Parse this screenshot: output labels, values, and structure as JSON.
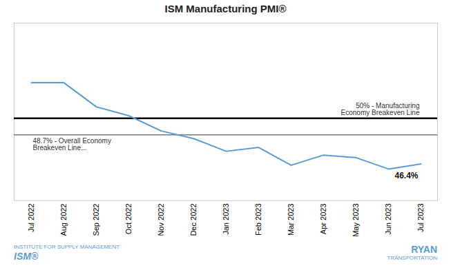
{
  "chart_data": {
    "type": "line",
    "title": "ISM Manufacturing PMI®",
    "categories": [
      "Jul 2022",
      "Aug 2022",
      "Sep 2022",
      "Oct 2022",
      "Nov 2022",
      "Dec 2022",
      "Jan 2023",
      "Feb 2023",
      "Mar 2023",
      "Apr 2023",
      "May 2023",
      "Jun 2023",
      "Jul 2023"
    ],
    "values": [
      52.8,
      52.8,
      50.9,
      50.2,
      49.0,
      48.4,
      47.4,
      47.7,
      46.3,
      47.1,
      46.9,
      46.0,
      46.4
    ],
    "color": "#5b9bd5",
    "ylim": [
      43.5,
      57.5
    ],
    "tick_labels": "x",
    "grid": false,
    "reference_lines": [
      {
        "y": 50.0,
        "label": "50% - Manufacturing\nEconomy Breakeven Line",
        "color": "#000000",
        "line_style": "solid"
      },
      {
        "y": 48.7,
        "label": "48.7% - Overall Economy\nBreakeven Line...",
        "color": "#777777",
        "line_style": "dashed"
      }
    ],
    "annotations": [
      {
        "text": "46.4%",
        "x": "Jul 2023",
        "y": 46.4
      },
      {
        "text": "INSTITUTE FOR SUPPLY MANAGEMENT",
        "color": "#5b9bd5"
      },
      {
        "text": "ISM®",
        "color": "#5b9bd5"
      },
      {
        "text": "RYAN",
        "color": "#5b9bd5"
      },
      {
        "text": "TRANSPORTATION",
        "color": "#5b9bd5"
      }
    ]
  }
}
